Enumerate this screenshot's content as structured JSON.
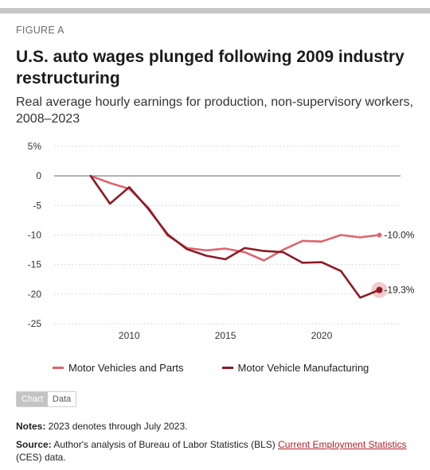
{
  "figure_label": "FIGURE A",
  "title": "U.S. auto wages plunged following 2009 industry restructuring",
  "subtitle": "Real average hourly earnings for production, non-supervisory workers, 2008–2023",
  "colors": {
    "series1": "#e0646e",
    "series2": "#8c1a26",
    "highlight": "#f2c5c5"
  },
  "chart_data": {
    "type": "line",
    "x": [
      2008,
      2009,
      2010,
      2011,
      2012,
      2013,
      2014,
      2015,
      2016,
      2017,
      2018,
      2019,
      2020,
      2021,
      2022,
      2023
    ],
    "series": [
      {
        "name": "Motor Vehicles and Parts",
        "values": [
          0,
          -1.2,
          -2.2,
          -5.4,
          -10.1,
          -12.2,
          -12.6,
          -12.3,
          -12.9,
          -14.3,
          -12.5,
          -11.0,
          -11.1,
          -10.0,
          -10.4,
          -10.0
        ]
      },
      {
        "name": "Motor Vehicle Manufacturing",
        "values": [
          0,
          -4.7,
          -1.9,
          -5.6,
          -9.9,
          -12.4,
          -13.5,
          -14.1,
          -12.2,
          -12.7,
          -12.9,
          -14.7,
          -14.6,
          -16.1,
          -20.6,
          -19.3
        ]
      }
    ],
    "end_labels": [
      "-10.0%",
      "-19.3%"
    ],
    "y_ticks": [
      "5%",
      "0",
      "-5",
      "-10",
      "-15",
      "-20",
      "-25"
    ],
    "y_tick_values": [
      5,
      0,
      -5,
      -10,
      -15,
      -20,
      -25
    ],
    "x_ticks": [
      "2010",
      "2015",
      "2020"
    ],
    "x_tick_values": [
      2010,
      2015,
      2020
    ],
    "xlim": [
      2006.1,
      2024.1
    ],
    "ylim": [
      -25,
      5
    ],
    "grid": "dotted horizontal",
    "legend": "bottom"
  },
  "toggle": {
    "chart": "Chart",
    "data": "Data"
  },
  "notes": {
    "label": "Notes:",
    "text": " 2023 denotes through July 2023."
  },
  "source": {
    "label": "Source:",
    "text_before": " Author's analysis of Bureau of Labor Statistics (BLS) ",
    "link": "Current Employment Statistics",
    "text_after": " (CES) data."
  }
}
